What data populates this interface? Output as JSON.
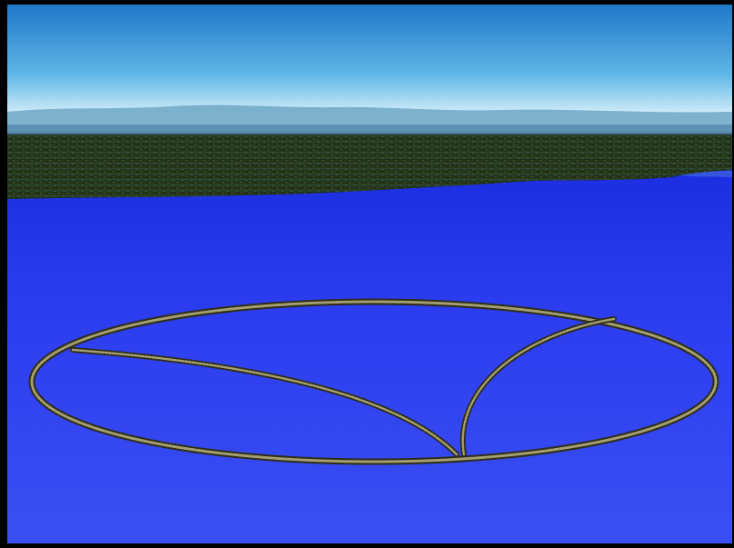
{
  "scene": {
    "subject": "aerial-render",
    "colors": {
      "frame": "#000000",
      "sky_top": "#1f78c8",
      "sky_mid": "#5fb6e6",
      "sky_horizon": "#eaf6fb",
      "mountains": "#6aa3c4",
      "land_dark": "#1d2a14",
      "land_light": "#3b4f24",
      "water_top": "#1f3ee6",
      "water_mid": "#2a3cf0",
      "water_bottom": "#3a50f2",
      "ring": "#6b6a4a",
      "ring_light": "#a49f70"
    }
  }
}
